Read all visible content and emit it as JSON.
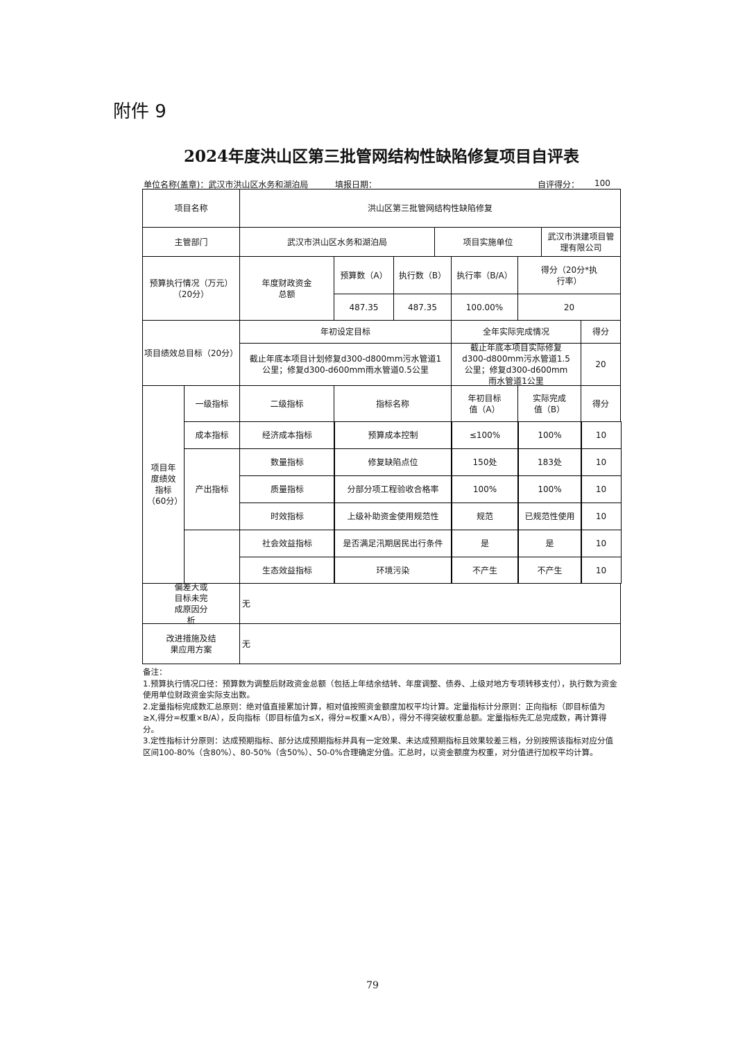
{
  "attachment": "附件 9",
  "title": "2024年度洪山区第三批管网结构性缺陷修复项目自评表",
  "header": {
    "unit": "单位名称(盖章)：武汉市洪山区水务和湖泊局",
    "date": "填报日期：",
    "score_label": "自评得分：",
    "score": "100"
  },
  "project": {
    "name_label": "项目名称",
    "name": "洪山区第三批管网结构性缺陷修复",
    "dept_label": "主管部门",
    "dept": "武汉市洪山区水务和湖泊局",
    "impl_label": "项目实施单位",
    "impl": "武汉市洪建项目管理有限公司"
  },
  "budget": {
    "label": "预算执行情况（万元）（20分）",
    "fund_label": "年度财政资金总额",
    "budget_h": "预算数（A）",
    "exec_h": "执行数（B）",
    "rate_h": "执行率（B/A）",
    "score_h": "得分（20分*执行率）",
    "budget": "487.35",
    "exec": "487.35",
    "rate": "100.00%",
    "score": "20"
  },
  "goal": {
    "label": "项目绩效总目标（20分）",
    "plan_h": "年初设定目标",
    "actual_h": "全年实际完成情况",
    "score_h": "得分",
    "plan": "截止年底本项目计划修复d300-d800mm污水管道1公里；修复d300-d600mm雨水管道0.5公里",
    "actual": "截止年底本项目实际修复d300-d800mm污水管道1.5公里；修复d300-d600mm雨水管道1公里",
    "score": "20"
  },
  "indicators": {
    "label": "项目年度绩效指标（60分）",
    "headers": [
      "一级指标",
      "二级指标",
      "指标名称",
      "年初目标值（A）",
      "实际完成值（B）",
      "得分"
    ],
    "level1": [
      "成本指标",
      "产出指标",
      ""
    ],
    "rows": [
      {
        "l2": "经济成本指标",
        "name": "预算成本控制",
        "target": "≤100%",
        "actual": "100%",
        "score": "10"
      },
      {
        "l2": "数量指标",
        "name": "修复缺陷点位",
        "target": "150处",
        "actual": "183处",
        "score": "10"
      },
      {
        "l2": "质量指标",
        "name": "分部分项工程验收合格率",
        "target": "100%",
        "actual": "100%",
        "score": "10"
      },
      {
        "l2": "时效指标",
        "name": "上级补助资金使用规范性",
        "target": "规范",
        "actual": "已规范性使用",
        "score": "10"
      },
      {
        "l2": "社会效益指标",
        "name": "是否满足汛期居民出行条件",
        "target": "是",
        "actual": "是",
        "score": "10"
      },
      {
        "l2": "生态效益指标",
        "name": "环境污染",
        "target": "不产生",
        "actual": "不产生",
        "score": "10"
      }
    ]
  },
  "deviation": {
    "label": "偏差大或目标未完成原因分析",
    "value": "无"
  },
  "improve": {
    "label": "改进措施及结果应用方案",
    "value": "无"
  },
  "notes": [
    "备注：",
    "1.预算执行情况口径：预算数为调整后财政资金总额（包括上年结余结转、年度调整、债券、上级对地方专项转移支付），执行数为资金使用单位财政资金实际支出数。",
    "2.定量指标完成数汇总原则：绝对值直接累加计算，相对值按照资金额度加权平均计算。定量指标计分原则：正向指标（即目标值为≥X,得分=权重×B/A），反向指标（即目标值为≤X，得分=权重×A/B），得分不得突破权重总额。定量指标先汇总完成数，再计算得分。",
    "3.定性指标计分原则：达成预期指标、部分达成预期指标并具有一定效果、未达成预期指标且效果较差三档，分别按照该指标对应分值区间100-80%（含80%）、80-50%（含50%）、50-0%合理确定分值。汇总时，以资金额度为权重，对分值进行加权平均计算。"
  ],
  "page_number": "79"
}
